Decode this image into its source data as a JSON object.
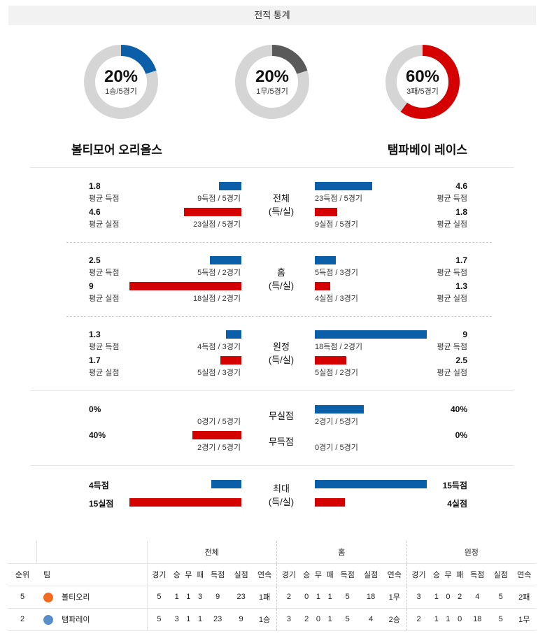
{
  "header": "전적 통계",
  "donuts": [
    {
      "pct": "20%",
      "sub": "1승/5경기",
      "fraction": 0.2,
      "color": "#0b5ea8"
    },
    {
      "pct": "20%",
      "sub": "1무/5경기",
      "fraction": 0.2,
      "color": "#5a5a5a"
    },
    {
      "pct": "60%",
      "sub": "3패/5경기",
      "fraction": 0.6,
      "color": "#d50000"
    }
  ],
  "teams": {
    "left": "볼티모어 오리올스",
    "right": "탬파베이 레이스"
  },
  "sections": {
    "total": {
      "label1": "전체",
      "label2": "(득/실)",
      "left": {
        "score_val": "1.8",
        "score_lab": "평균 득점",
        "score_bar": "9득점 / 5경기",
        "score_frac": 0.2,
        "allow_val": "4.6",
        "allow_lab": "평균 실점",
        "allow_bar": "23실점 / 5경기",
        "allow_frac": 0.51
      },
      "right": {
        "score_val": "4.6",
        "score_lab": "평균 득점",
        "score_bar": "23득점 / 5경기",
        "score_frac": 0.51,
        "allow_val": "1.8",
        "allow_lab": "평균 실점",
        "allow_bar": "9실점 / 5경기",
        "allow_frac": 0.2
      }
    },
    "home": {
      "label1": "홈",
      "label2": "(득/실)",
      "left": {
        "score_val": "2.5",
        "score_lab": "평균 득점",
        "score_bar": "5득점 / 2경기",
        "score_frac": 0.28,
        "allow_val": "9",
        "allow_lab": "평균 실점",
        "allow_bar": "18실점 / 2경기",
        "allow_frac": 1.0
      },
      "right": {
        "score_val": "1.7",
        "score_lab": "평균 득점",
        "score_bar": "5득점 / 3경기",
        "score_frac": 0.19,
        "allow_val": "1.3",
        "allow_lab": "평균 실점",
        "allow_bar": "4실점 / 3경기",
        "allow_frac": 0.14
      }
    },
    "away": {
      "label1": "원정",
      "label2": "(득/실)",
      "left": {
        "score_val": "1.3",
        "score_lab": "평균 득점",
        "score_bar": "4득점 / 3경기",
        "score_frac": 0.14,
        "allow_val": "1.7",
        "allow_lab": "평균 실점",
        "allow_bar": "5실점 / 3경기",
        "allow_frac": 0.19
      },
      "right": {
        "score_val": "9",
        "score_lab": "평균 득점",
        "score_bar": "18득점 / 2경기",
        "score_frac": 1.0,
        "allow_val": "2.5",
        "allow_lab": "평균 실점",
        "allow_bar": "5실점 / 2경기",
        "allow_frac": 0.28
      }
    },
    "shutout": {
      "label_a": "무실점",
      "label_b": "무득점",
      "left": {
        "a_val": "0%",
        "a_bar": "0경기 / 5경기",
        "a_frac": 0,
        "b_val": "40%",
        "b_bar": "2경기 / 5경기",
        "b_frac": 0.44
      },
      "right": {
        "a_val": "40%",
        "a_bar": "2경기 / 5경기",
        "a_frac": 0.44,
        "b_val": "0%",
        "b_bar": "0경기 / 5경기",
        "b_frac": 0
      }
    },
    "max": {
      "label1": "최대",
      "label2": "(득/실)",
      "left": {
        "score": "4득점",
        "score_frac": 0.27,
        "allow": "15실점",
        "allow_frac": 1.0
      },
      "right": {
        "score": "15득점",
        "score_frac": 1.0,
        "allow": "4실점",
        "allow_frac": 0.27
      }
    }
  },
  "table": {
    "groups": [
      "전체",
      "홈",
      "원정"
    ],
    "cols": [
      "경기",
      "승",
      "무",
      "패",
      "득점",
      "실점",
      "연속"
    ],
    "rank_label": "순위",
    "team_label": "팀",
    "rows": [
      {
        "rank": "5",
        "team": "볼티오리",
        "logo_color": "#f26b21",
        "all": [
          "5",
          "1",
          "1",
          "3",
          "9",
          "23",
          "1패"
        ],
        "home": [
          "2",
          "0",
          "1",
          "1",
          "5",
          "18",
          "1무"
        ],
        "away": [
          "3",
          "1",
          "0",
          "2",
          "4",
          "5",
          "2패"
        ]
      },
      {
        "rank": "2",
        "team": "탬파레이",
        "logo_color": "#5a8ec8",
        "all": [
          "5",
          "3",
          "1",
          "1",
          "23",
          "9",
          "1승"
        ],
        "home": [
          "3",
          "2",
          "0",
          "1",
          "5",
          "4",
          "2승"
        ],
        "away": [
          "2",
          "1",
          "1",
          "0",
          "18",
          "5",
          "1무"
        ]
      }
    ]
  }
}
